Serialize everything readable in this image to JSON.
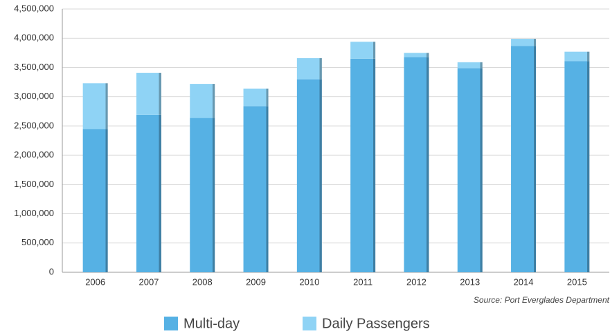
{
  "chart_data": {
    "type": "stacked-bar",
    "categories": [
      "2006",
      "2007",
      "2008",
      "2009",
      "2010",
      "2011",
      "2012",
      "2013",
      "2014",
      "2015"
    ],
    "series": [
      {
        "name": "Multi-day",
        "color": "#56b1e4",
        "values": [
          2450000,
          2690000,
          2640000,
          2840000,
          3300000,
          3650000,
          3680000,
          3490000,
          3870000,
          3610000
        ]
      },
      {
        "name": "Daily Passengers",
        "color": "#8fd3f5",
        "values": [
          780000,
          720000,
          580000,
          300000,
          360000,
          290000,
          70000,
          100000,
          120000,
          160000
        ]
      }
    ],
    "ylim": [
      0,
      4500000
    ],
    "yticks": [
      0,
      {
        "value": 500000,
        "label": "500,000"
      },
      {
        "value": 1000000,
        "label": "1,000,000"
      },
      {
        "value": 1500000,
        "label": "1,500,000"
      },
      {
        "value": 2000000,
        "label": "2,000,000"
      },
      {
        "value": 2500000,
        "label": "2,500,000"
      },
      {
        "value": 3000000,
        "label": "3,000,000"
      },
      {
        "value": 3500000,
        "label": "3,500,000"
      },
      {
        "value": 4000000,
        "label": "4,000,000"
      },
      {
        "value": 4500000,
        "label": "4,500,000"
      }
    ],
    "grid": true,
    "annotation": "Source: Port Everglades Department",
    "legend": "bottom"
  }
}
